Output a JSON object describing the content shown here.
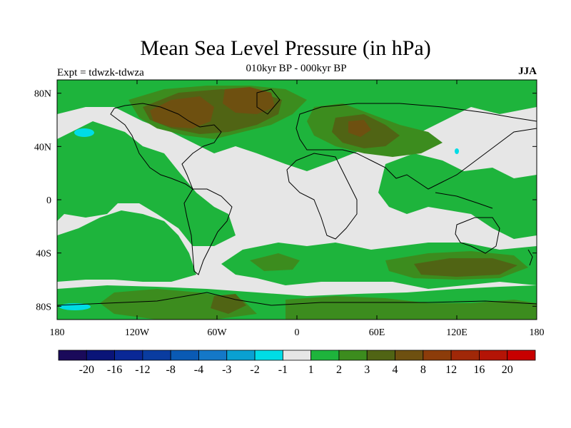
{
  "title": "Mean Sea Level Pressure (in hPa)",
  "subtitle": "010kyr BP - 000kyr BP",
  "left_label": "Expt = tdwzk-tdwza",
  "right_label": "JJA",
  "axes": {
    "x_ticks": [
      {
        "lon": -180,
        "label": "180"
      },
      {
        "lon": -120,
        "label": "120W"
      },
      {
        "lon": -60,
        "label": "60W"
      },
      {
        "lon": 0,
        "label": "0"
      },
      {
        "lon": 60,
        "label": "60E"
      },
      {
        "lon": 120,
        "label": "120E"
      },
      {
        "lon": 180,
        "label": "180"
      }
    ],
    "y_ticks": [
      {
        "lat": 80,
        "label": "80N"
      },
      {
        "lat": 40,
        "label": "40N"
      },
      {
        "lat": 0,
        "label": "0"
      },
      {
        "lat": -40,
        "label": "40S"
      },
      {
        "lat": -80,
        "label": "80S"
      }
    ],
    "lon_range": [
      -180,
      180
    ],
    "lat_range": [
      -90,
      90
    ]
  },
  "colorbar": {
    "colors": [
      "#1a0a5a",
      "#0a1478",
      "#0a2896",
      "#0a3ca0",
      "#0a5ab4",
      "#1478c8",
      "#0aa0d2",
      "#00dce6",
      "#e6e6e6",
      "#1eb43c",
      "#3c8c1e",
      "#506414",
      "#6e5010",
      "#8c3c0a",
      "#a02808",
      "#b41406",
      "#c80000"
    ],
    "labels": [
      "-20",
      "-16",
      "-12",
      "-8",
      "-4",
      "-3",
      "-2",
      "-1",
      "1",
      "2",
      "3",
      "4",
      "8",
      "12",
      "16",
      "20"
    ]
  },
  "map_colors": {
    "background": "#e6e6e6",
    "light_green": "#1eb43c",
    "mid_green": "#3c8c1e",
    "olive": "#506414",
    "brown": "#6e5010",
    "cyan": "#00dce6"
  }
}
